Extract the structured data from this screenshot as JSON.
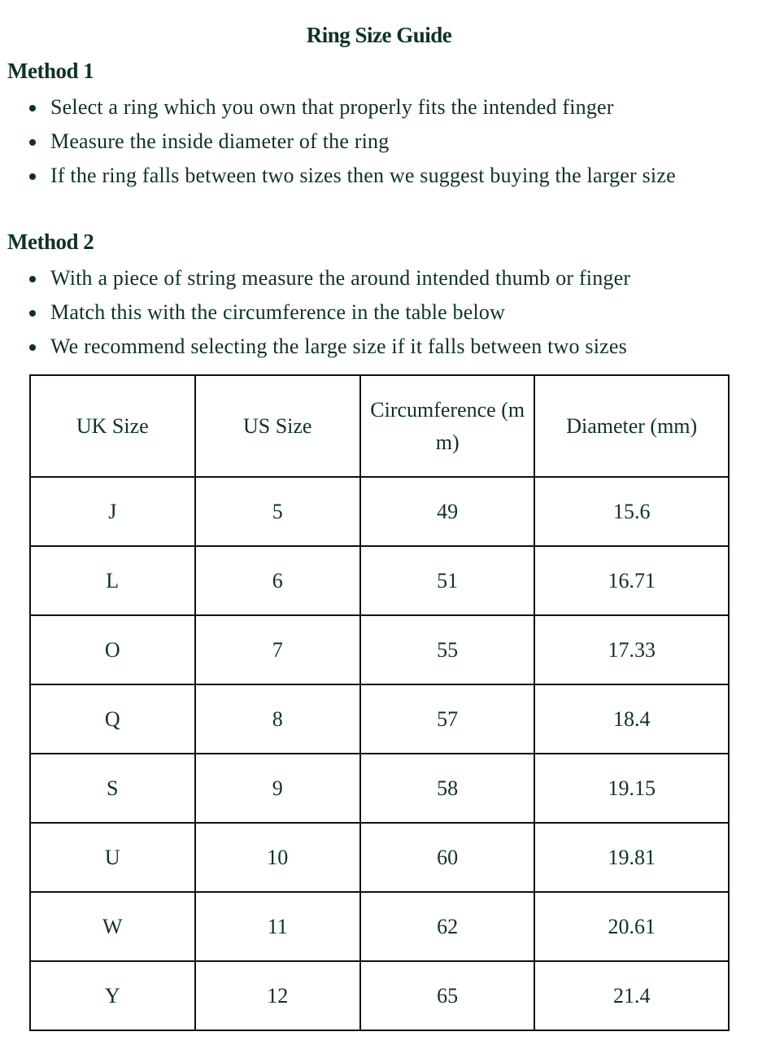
{
  "title": "Ring Size Guide",
  "method1": {
    "heading": "Method 1",
    "items": [
      "Select a ring which you own that properly fits the intended finger",
      "Measure the inside diameter of the ring",
      "If the ring falls between two sizes then we suggest buying the larger size"
    ]
  },
  "method2": {
    "heading": "Method 2",
    "items": [
      "With a piece of string measure the around intended thumb or finger",
      "Match this with the circumference in the table below",
      "We recommend selecting the large size if it falls between two sizes"
    ]
  },
  "table": {
    "headers": [
      "UK Size",
      "US Size",
      "Circumference (mm)",
      "Diameter (mm)"
    ],
    "rows": [
      [
        "J",
        "5",
        "49",
        "15.6"
      ],
      [
        "L",
        "6",
        "51",
        "16.71"
      ],
      [
        "O",
        "7",
        "55",
        "17.33"
      ],
      [
        "Q",
        "8",
        "57",
        "18.4"
      ],
      [
        "S",
        "9",
        "58",
        "19.15"
      ],
      [
        "U",
        "10",
        "60",
        "19.81"
      ],
      [
        "W",
        "11",
        "62",
        "20.61"
      ],
      [
        "Y",
        "12",
        "65",
        "21.4"
      ]
    ]
  }
}
